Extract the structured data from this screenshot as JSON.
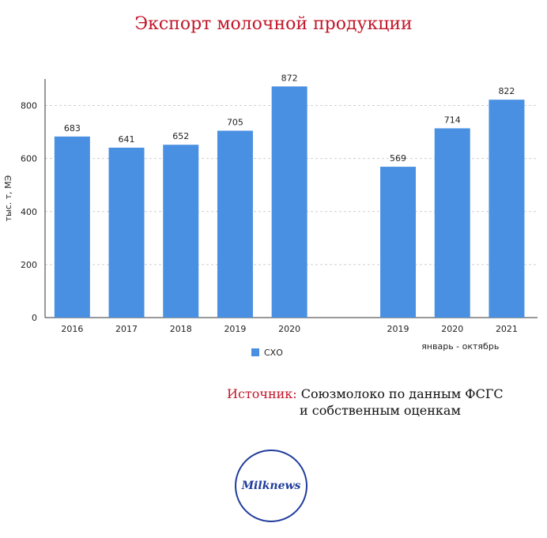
{
  "title": "Экспорт молочной продукции",
  "chart_data": {
    "type": "bar",
    "ylabel": "тыс. т, МЭ",
    "ylim": [
      0,
      900
    ],
    "yticks": [
      0,
      200,
      400,
      600,
      800
    ],
    "legend": "bottom-center",
    "series": [
      {
        "name": "СХО",
        "color": "#4a90e2",
        "groups": [
          {
            "label": "",
            "categories": [
              "2016",
              "2017",
              "2018",
              "2019",
              "2020"
            ],
            "values": [
              683,
              641,
              652,
              705,
              872
            ]
          },
          {
            "label": "январь - октябрь",
            "categories": [
              "2019",
              "2020",
              "2021"
            ],
            "values": [
              569,
              714,
              822
            ]
          }
        ]
      }
    ]
  },
  "source": {
    "label": "Источник:",
    "line1": "Союзмолоко по данным ФСГС",
    "line2": "и собственным оценкам"
  },
  "logo_text": "Milknews"
}
